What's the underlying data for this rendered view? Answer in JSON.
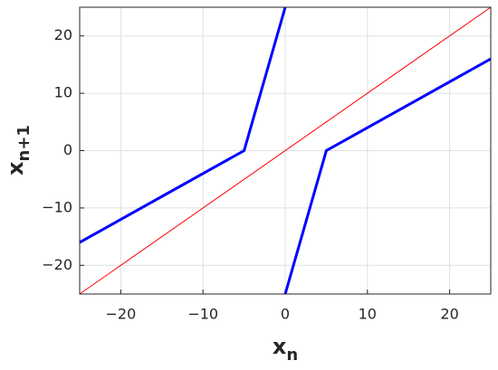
{
  "chart_data": {
    "type": "line",
    "xlabel": {
      "base": "x",
      "sub": "n"
    },
    "ylabel": {
      "base": "x",
      "sub": "n+1"
    },
    "xlim": [
      -25,
      25
    ],
    "ylim": [
      -25,
      25
    ],
    "xticks": [
      {
        "value": -20,
        "label": "−20"
      },
      {
        "value": -10,
        "label": "−10"
      },
      0,
      10,
      20
    ],
    "yticks": [
      {
        "value": -20,
        "label": "−20"
      },
      {
        "value": -10,
        "label": "−10"
      },
      0,
      10,
      20
    ],
    "grid": true,
    "series": [
      {
        "color": "#0000ff",
        "linewidth": 3,
        "x": [
          -25,
          -5,
          0
        ],
        "values": [
          -16,
          0,
          25
        ]
      },
      {
        "color": "#0000ff",
        "linewidth": 3,
        "x": [
          0,
          5,
          25
        ],
        "values": [
          -25,
          0,
          16
        ]
      },
      {
        "color": "#ff0000",
        "linewidth": 1,
        "x": [
          -25,
          25
        ],
        "values": [
          -25,
          25
        ]
      }
    ]
  }
}
